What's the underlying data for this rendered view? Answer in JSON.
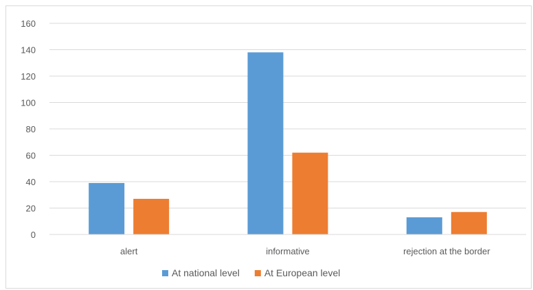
{
  "chart_data": {
    "type": "bar",
    "categories": [
      "alert",
      "informative",
      "rejection at the border"
    ],
    "series": [
      {
        "name": "At national level",
        "values": [
          39,
          138,
          13
        ],
        "color": "#5b9bd5"
      },
      {
        "name": "At European level",
        "values": [
          27,
          62,
          17
        ],
        "color": "#ed7d31"
      }
    ],
    "ylim": [
      0,
      160
    ],
    "yticks": [
      0,
      20,
      40,
      60,
      80,
      100,
      120,
      140,
      160
    ],
    "grid": true,
    "legend": "bottom"
  }
}
